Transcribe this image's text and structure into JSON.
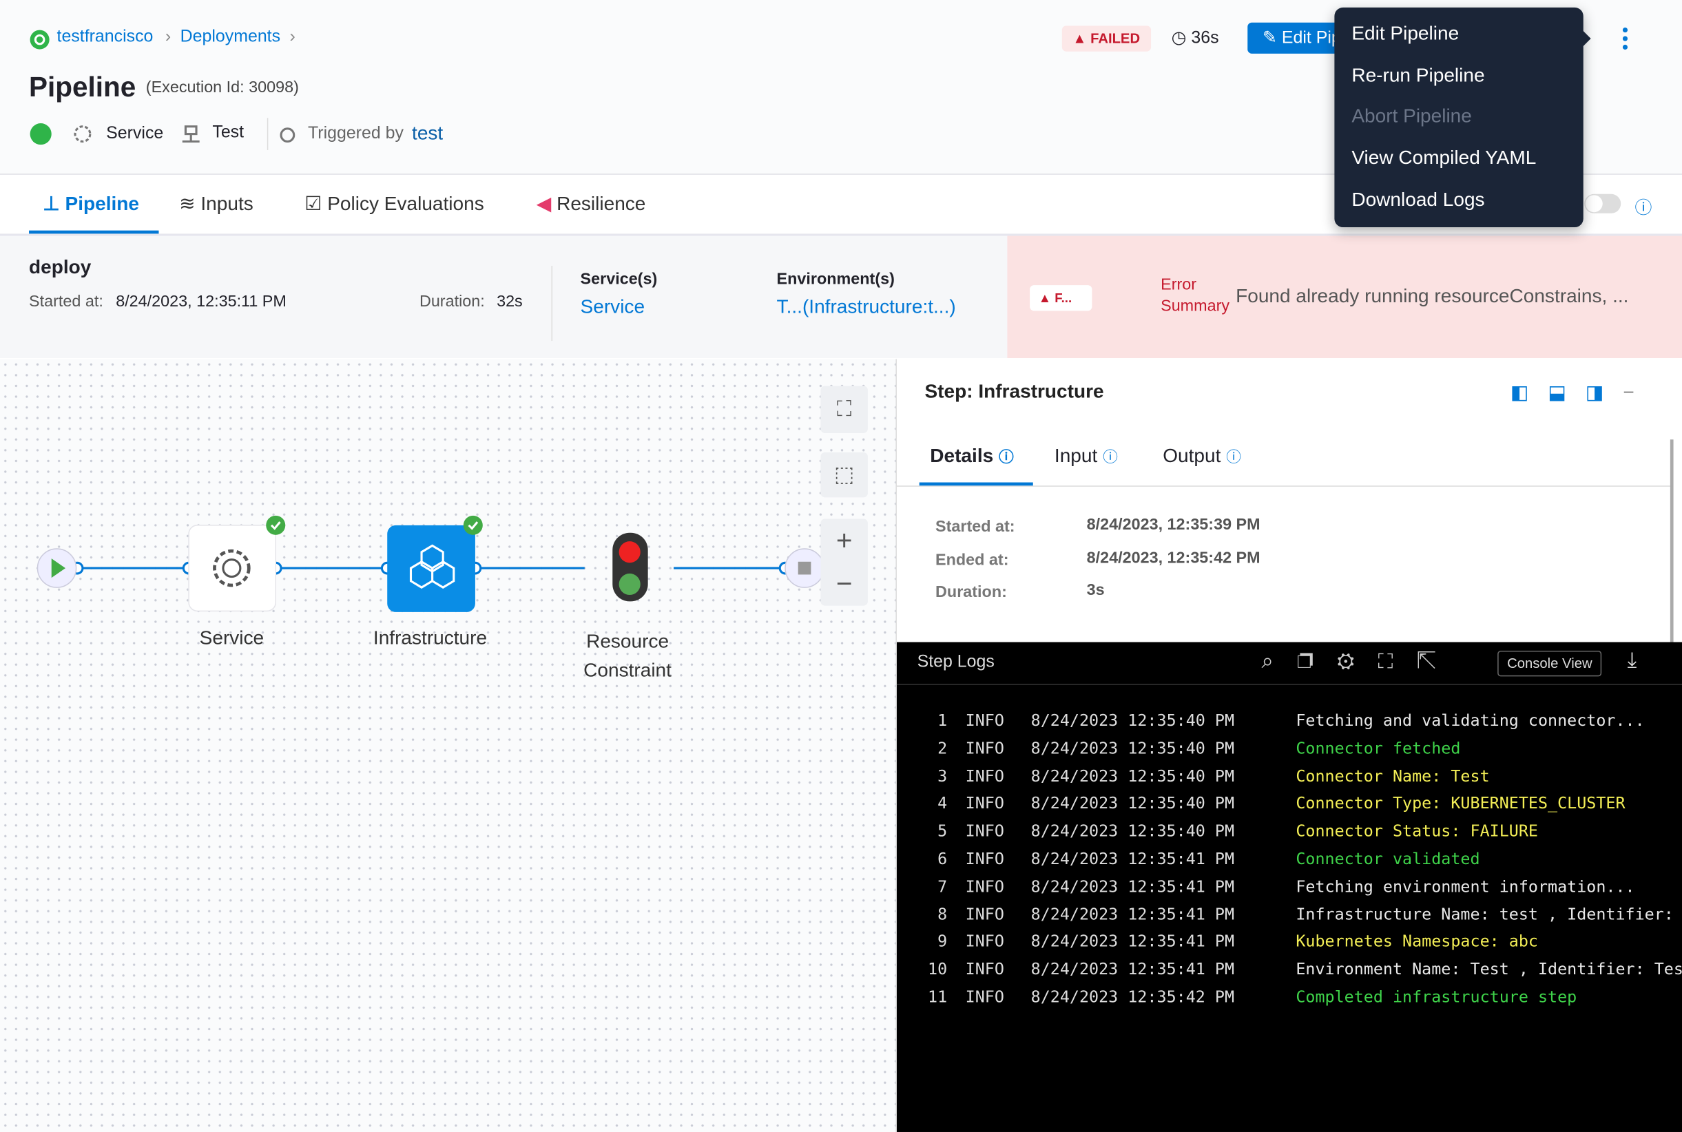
{
  "header": {
    "breadcrumbs": [
      "testfrancisco",
      "Deployments"
    ],
    "title": "Pipeline",
    "execution_id": "(Execution Id: 30098)",
    "status": "FAILED",
    "elapsed": "36s",
    "edit_button": "Edit Pipeline",
    "meta": {
      "service": "Service",
      "environment": "Test",
      "triggered_label": "Triggered by",
      "triggered_user": "test"
    }
  },
  "tabs": [
    "Pipeline",
    "Inputs",
    "Policy Evaluations",
    "Resilience"
  ],
  "menu": {
    "items": [
      {
        "label": "Edit Pipeline",
        "enabled": true
      },
      {
        "label": "Re-run Pipeline",
        "enabled": true
      },
      {
        "label": "Abort Pipeline",
        "enabled": false
      },
      {
        "label": "View Compiled YAML",
        "enabled": true
      },
      {
        "label": "Download Logs",
        "enabled": true
      }
    ]
  },
  "stage": {
    "name": "deploy",
    "started_label": "Started at:",
    "started": "8/24/2023, 12:35:11 PM",
    "duration_label": "Duration:",
    "duration": "32s",
    "services_label": "Service(s)",
    "service": "Service",
    "env_label": "Environment(s)",
    "env": "T...",
    "env_infra": "(Infrastructure:t...)",
    "error_badge": "F...",
    "error_label": "Error Summary",
    "error_message": "Found already running resourceConstrains, ..."
  },
  "graph": {
    "nodes": [
      {
        "label": "Service"
      },
      {
        "label": "Infrastructure"
      },
      {
        "label": "Resource Constraint"
      }
    ]
  },
  "step": {
    "title": "Step: Infrastructure",
    "tabs": [
      "Details",
      "Input",
      "Output"
    ],
    "details": [
      {
        "label": "Started at:",
        "value": "8/24/2023, 12:35:39 PM"
      },
      {
        "label": "Ended at:",
        "value": "8/24/2023, 12:35:42 PM"
      },
      {
        "label": "Duration:",
        "value": "3s"
      }
    ]
  },
  "logs": {
    "title": "Step Logs",
    "view_button": "Console View",
    "lines": [
      {
        "num": 1,
        "level": "INFO",
        "time": "8/24/2023 12:35:40 PM",
        "message": "Fetching and validating connector...",
        "tone": "white"
      },
      {
        "num": 2,
        "level": "INFO",
        "time": "8/24/2023 12:35:40 PM",
        "message": "Connector fetched",
        "tone": "green"
      },
      {
        "num": 3,
        "level": "INFO",
        "time": "8/24/2023 12:35:40 PM",
        "message": "Connector Name: Test",
        "tone": "yellow"
      },
      {
        "num": 4,
        "level": "INFO",
        "time": "8/24/2023 12:35:40 PM",
        "message": "Connector Type: KUBERNETES_CLUSTER",
        "tone": "yellow"
      },
      {
        "num": 5,
        "level": "INFO",
        "time": "8/24/2023 12:35:40 PM",
        "message": "Connector Status: FAILURE",
        "tone": "yellow"
      },
      {
        "num": 6,
        "level": "INFO",
        "time": "8/24/2023 12:35:41 PM",
        "message": "Connector validated",
        "tone": "green"
      },
      {
        "num": 7,
        "level": "INFO",
        "time": "8/24/2023 12:35:41 PM",
        "message": "Fetching environment information...",
        "tone": "white"
      },
      {
        "num": 8,
        "level": "INFO",
        "time": "8/24/2023 12:35:41 PM",
        "message": "Infrastructure Name: test , Identifier: test",
        "tone": "white"
      },
      {
        "num": 9,
        "level": "INFO",
        "time": "8/24/2023 12:35:41 PM",
        "message": "Kubernetes Namespace: abc",
        "tone": "yellow"
      },
      {
        "num": 10,
        "level": "INFO",
        "time": "8/24/2023 12:35:41 PM",
        "message": "Environment Name: Test , Identifier: Test",
        "tone": "white"
      },
      {
        "num": 11,
        "level": "INFO",
        "time": "8/24/2023 12:35:42 PM",
        "message": "Completed infrastructure step",
        "tone": "green"
      }
    ]
  }
}
